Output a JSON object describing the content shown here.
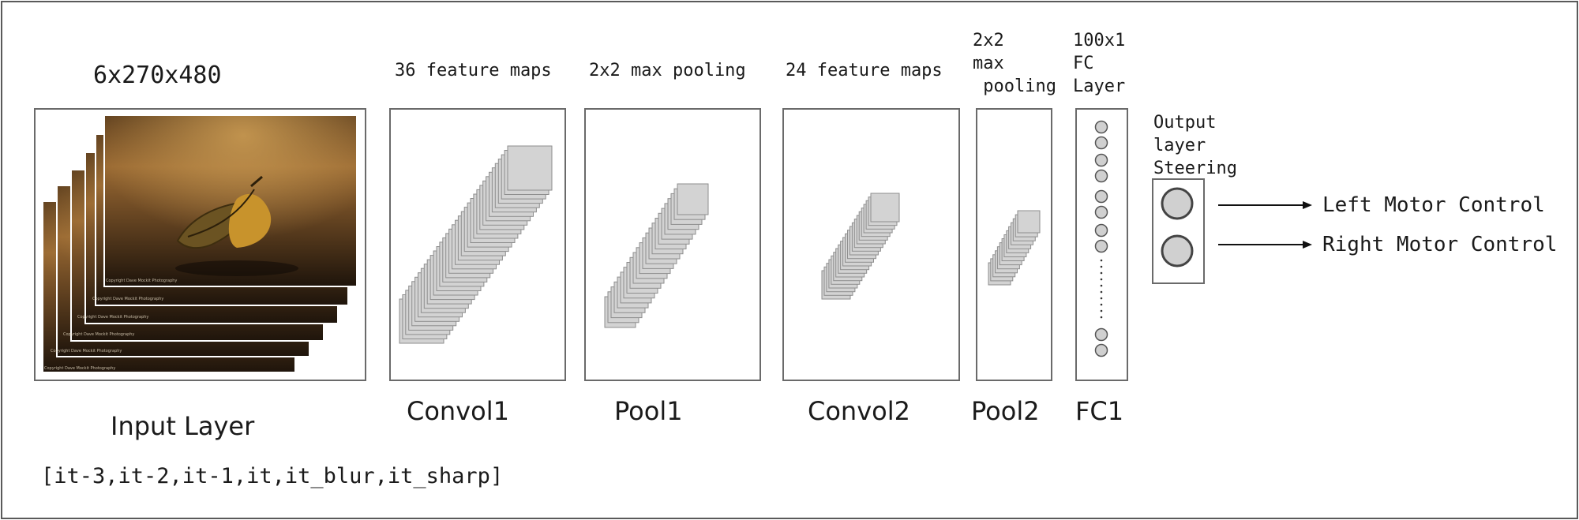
{
  "diagram": {
    "input": {
      "dims": "6x270x480",
      "label": "Input Layer",
      "channels": "[it-3,it-2,it-1,it,it_blur,it_sharp]",
      "copyright_text": "Copyright Dave Mockit Photography"
    },
    "layers": [
      {
        "id": "conv1",
        "caption": "36 feature maps",
        "label": "Convol1"
      },
      {
        "id": "pool1",
        "caption": "2x2 max pooling",
        "label": "Pool1"
      },
      {
        "id": "conv2",
        "caption": "24 feature maps",
        "label": "Convol2"
      },
      {
        "id": "pool2",
        "caption": "2x2\nmax\n pooling",
        "label": "Pool2"
      },
      {
        "id": "fc1",
        "caption": "100x1\nFC\nLayer",
        "label": "FC1"
      }
    ],
    "output": {
      "caption": "Output\nlayer\nSteering",
      "outputs": [
        "Left Motor Control",
        "Right Motor Control"
      ]
    },
    "colors": {
      "map_fill": "#d3d3d3",
      "map_stroke": "#8e8e8e",
      "neuron_fill": "#d0d0d0",
      "line": "#111111"
    }
  }
}
